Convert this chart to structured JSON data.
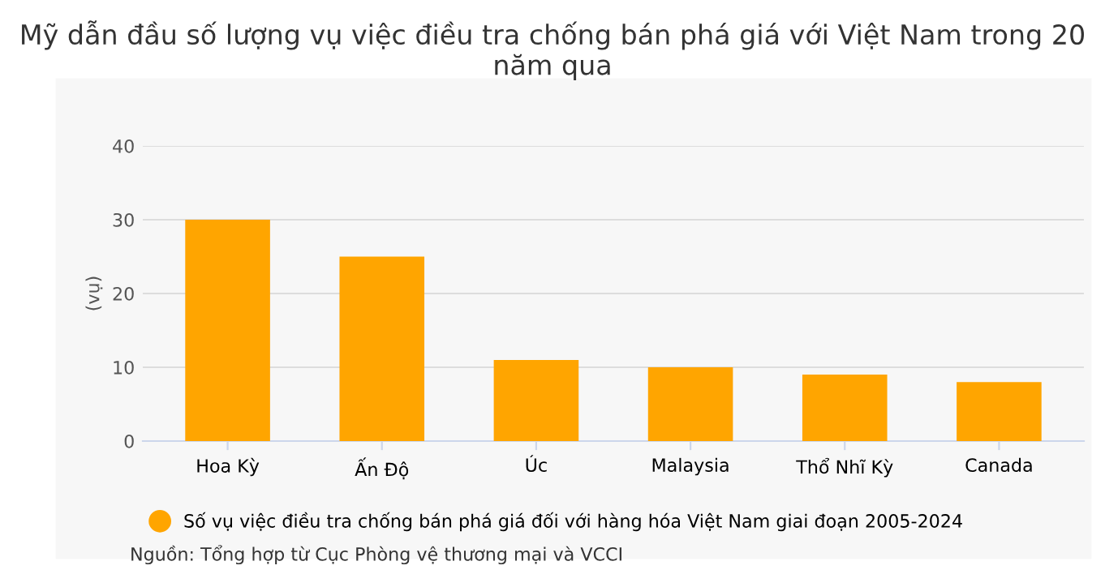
{
  "chart_data": {
    "type": "bar",
    "title": "Mỹ dẫn đầu số lượng vụ việc điều tra chống bán phá giá với Việt Nam trong 20 năm qua",
    "ylabel": "(vụ)",
    "categories": [
      "Hoa Kỳ",
      "Ấn Độ",
      "Úc",
      "Malaysia",
      "Thổ Nhĩ Kỳ",
      "Canada"
    ],
    "series": [
      {
        "name": "Số vụ việc điều tra chống bán phá giá đối với hàng hóa Việt Nam giai đoạn 2005-2024",
        "color": "#ffa500",
        "values": [
          30,
          25,
          11,
          10,
          9,
          8
        ]
      }
    ],
    "ylim": [
      0,
      40
    ],
    "yticks": [
      0,
      10,
      20,
      30,
      40
    ],
    "grid": "y",
    "legend": "bottom",
    "annotations": [
      "Nguồn: Tổng hợp từ Cục Phòng vệ thương mại và VCCI"
    ]
  }
}
